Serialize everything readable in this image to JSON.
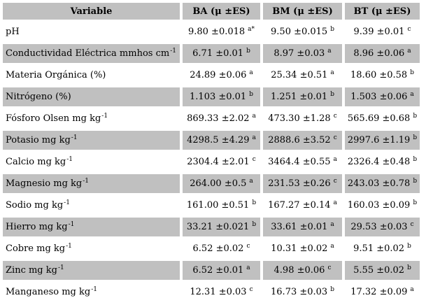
{
  "table": {
    "header": {
      "variable": "Variable",
      "ba": "BA (μ ±ES)",
      "bm": "BM (μ ±ES)",
      "bt": "BT (μ ±ES)"
    },
    "colors": {
      "row_shade": "#c0c0c0",
      "background": "#ffffff",
      "text": "#000000"
    },
    "rows": [
      {
        "variable": "pH",
        "variable_sup": "",
        "ba": "9.80 ±0.018",
        "ba_sup": "a*",
        "bm": "9.50 ±0.015",
        "bm_sup": "b",
        "bt": "9.39 ±0.01",
        "bt_sup": "c"
      },
      {
        "variable": "Conductividad Eléctrica mmhos cm",
        "variable_sup": "-1",
        "ba": "6.71 ±0.01",
        "ba_sup": "b",
        "bm": "8.97 ±0.03",
        "bm_sup": "a",
        "bt": "8.96 ±0.06",
        "bt_sup": "a"
      },
      {
        "variable": "Materia Orgánica (%)",
        "variable_sup": "",
        "ba": "24.89 ±0.06",
        "ba_sup": "a",
        "bm": "25.34 ±0.51",
        "bm_sup": "a",
        "bt": "18.60 ±0.58",
        "bt_sup": "b"
      },
      {
        "variable": "Nitrógeno (%)",
        "variable_sup": "",
        "ba": "1.103 ±0.01",
        "ba_sup": "b",
        "bm": "1.251 ±0.01",
        "bm_sup": "b",
        "bt": "1.503 ±0.06",
        "bt_sup": "a"
      },
      {
        "variable": "Fósforo Olsen mg kg",
        "variable_sup": "-1",
        "ba": "869.33 ±2.02",
        "ba_sup": "a",
        "bm": "473.30 ±1.28",
        "bm_sup": "c",
        "bt": "565.69 ±0.68",
        "bt_sup": "b"
      },
      {
        "variable": "Potasio mg kg",
        "variable_sup": "-1",
        "ba": "4298.5 ±4.29",
        "ba_sup": "a",
        "bm": "2888.6 ±3.52",
        "bm_sup": "c",
        "bt": "2997.6 ±1.19",
        "bt_sup": "b"
      },
      {
        "variable": "Calcio mg kg",
        "variable_sup": "-1",
        "ba": "2304.4 ±2.01",
        "ba_sup": "c",
        "bm": "3464.4 ±0.55",
        "bm_sup": "a",
        "bt": "2326.4 ±0.48",
        "bt_sup": "b"
      },
      {
        "variable": "Magnesio mg kg",
        "variable_sup": "-1",
        "ba": "264.00 ±0.5",
        "ba_sup": "a",
        "bm": "231.53 ±0.26",
        "bm_sup": "c",
        "bt": "243.03 ±0.78",
        "bt_sup": "b"
      },
      {
        "variable": "Sodio mg kg",
        "variable_sup": "-1",
        "ba": "161.00 ±0.51",
        "ba_sup": "b",
        "bm": "167.27 ±0.14",
        "bm_sup": "a",
        "bt": "160.03 ±0.09",
        "bt_sup": "b"
      },
      {
        "variable": "Hierro mg kg",
        "variable_sup": "-1",
        "ba": "33.21 ±0.021",
        "ba_sup": "b",
        "bm": "33.61 ±0.01",
        "bm_sup": "a",
        "bt": "29.53 ±0.03",
        "bt_sup": "c"
      },
      {
        "variable": "Cobre mg kg",
        "variable_sup": "-1",
        "ba": "6.52 ±0.02",
        "ba_sup": "c",
        "bm": "10.31 ±0.02",
        "bm_sup": "a",
        "bt": "9.51 ±0.02",
        "bt_sup": "b"
      },
      {
        "variable": "Zinc mg kg",
        "variable_sup": "-1",
        "ba": "6.52 ±0.01",
        "ba_sup": "a",
        "bm": "4.98 ±0.06",
        "bm_sup": "c",
        "bt": "5.55 ±0.02",
        "bt_sup": "b"
      },
      {
        "variable": "Manganeso mg kg",
        "variable_sup": "-1",
        "ba": "12.31 ±0.03",
        "ba_sup": "c",
        "bm": "16.73 ±0.03",
        "bm_sup": "b",
        "bt": "17.32 ±0.09",
        "bt_sup": "a"
      }
    ]
  }
}
